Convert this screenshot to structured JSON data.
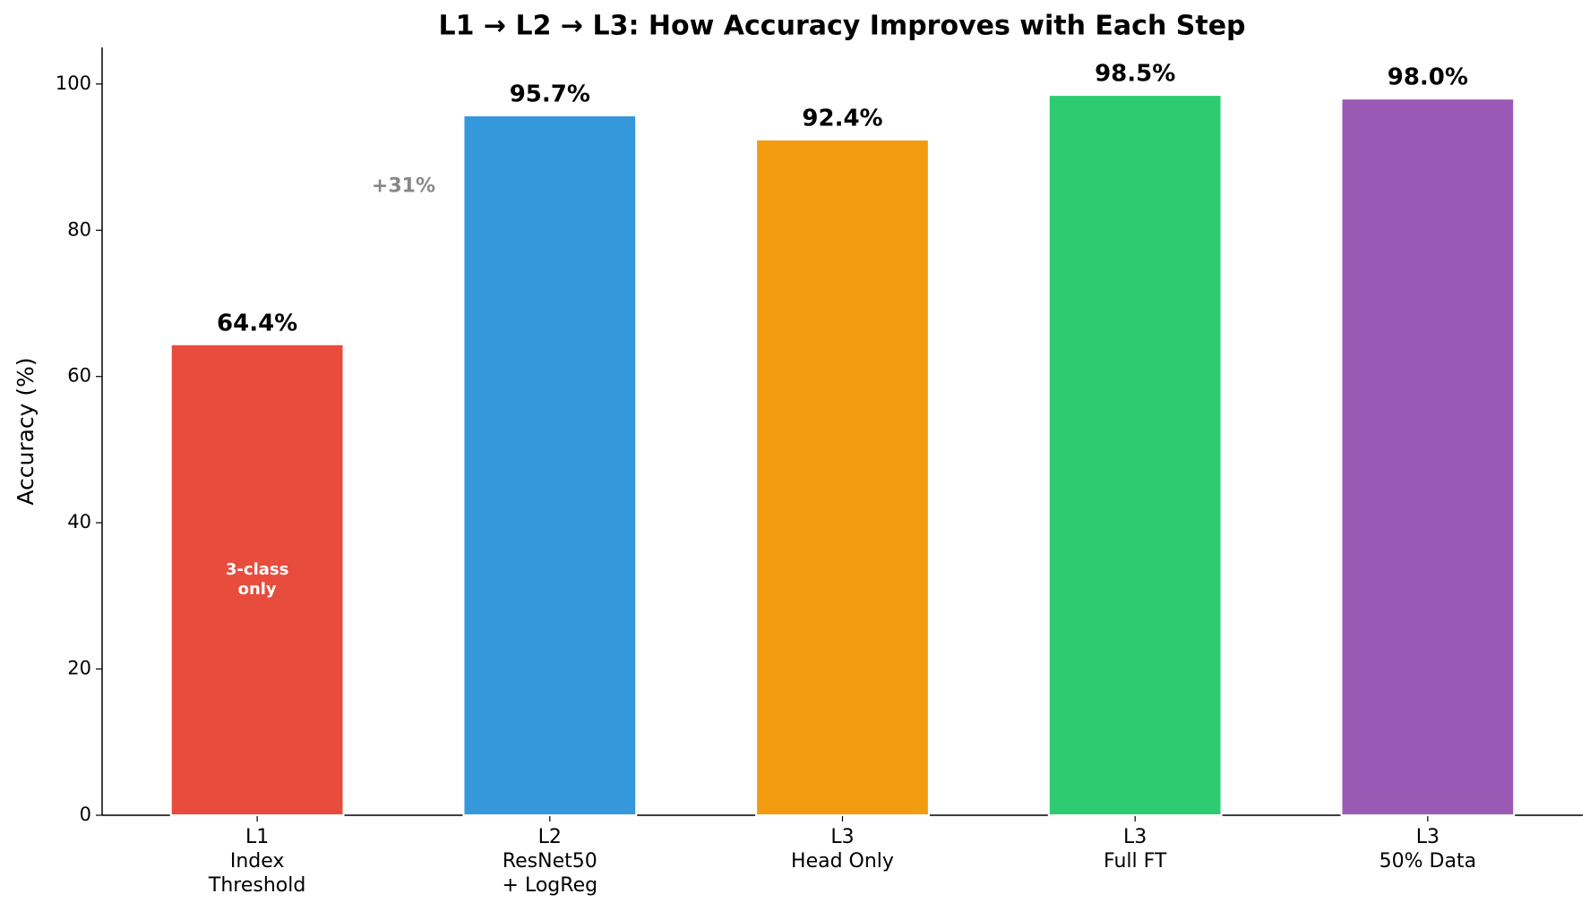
{
  "chart_data": {
    "type": "bar",
    "title": "L1 → L2 → L3: How Accuracy Improves with Each Step",
    "y_label": "Accuracy (%)",
    "categories": [
      "L1\nIndex\nThreshold",
      "L2\nResNet50\n+ LogReg",
      "L3\nHead Only",
      "L3\nFull FT",
      "L3\n50% Data"
    ],
    "values": [
      64.4,
      95.7,
      92.4,
      98.5,
      98.0
    ],
    "value_labels": [
      "64.4%",
      "95.7%",
      "92.4%",
      "98.5%",
      "98.0%"
    ],
    "colors": [
      "#e74c3c",
      "#3498db",
      "#f39c12",
      "#2ecc71",
      "#9b59b6"
    ],
    "annotations": [
      "+31%",
      "3-class\nonly"
    ],
    "ylim": [
      0,
      105
    ],
    "yticks": [
      0,
      20,
      40,
      60,
      80,
      100
    ],
    "grid": false
  }
}
